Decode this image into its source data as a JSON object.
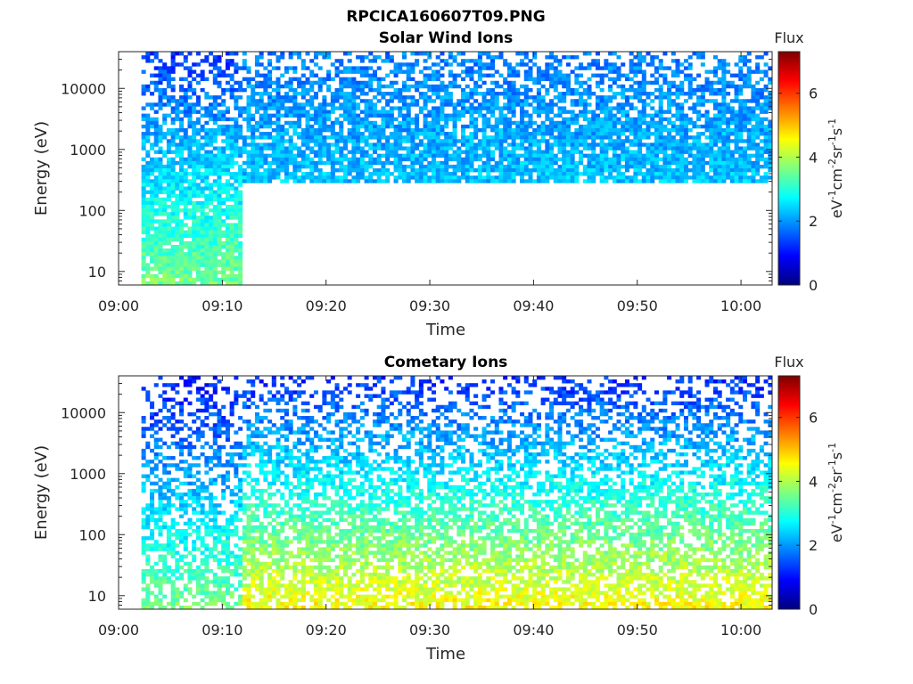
{
  "figure": {
    "title": "RPCICA160607T09.PNG"
  },
  "colorscale": [
    "#00007f",
    "#0000ff",
    "#007fff",
    "#00ffff",
    "#7fff7f",
    "#ffff00",
    "#ff7f00",
    "#ff0000",
    "#7f0000"
  ],
  "chart_data": [
    {
      "type": "heatmap",
      "title": "Solar Wind Ions",
      "xlabel": "Time",
      "ylabel": "Energy (eV)",
      "x_ticks": [
        "09:00",
        "09:10",
        "09:20",
        "09:30",
        "09:40",
        "09:50",
        "10:00"
      ],
      "x_range_minutes": [
        0,
        63
      ],
      "y_scale": "log",
      "y_ticks": [
        "10",
        "100",
        "1000",
        "10000"
      ],
      "y_range": [
        6,
        40000
      ],
      "colorbar": {
        "label": "Flux",
        "units": "eV-1cm-2sr-1s-1",
        "ticks": [
          "0",
          "2",
          "4",
          "6"
        ],
        "range": [
          0,
          7.3
        ]
      },
      "data_start_minute": 2.2,
      "data_end_minute": 63,
      "regions": [
        {
          "from_minute": 2.2,
          "to_minute": 11.8,
          "energy_min": 6,
          "energy_max": 40000,
          "flux_low_energy": 3.6,
          "flux_high_energy": 1.3,
          "density": 0.9
        },
        {
          "from_minute": 11.8,
          "to_minute": 63,
          "energy_min": 300,
          "energy_max": 40000,
          "flux_low_energy": 2.3,
          "flux_high_energy": 1.8,
          "density": 0.85
        }
      ]
    },
    {
      "type": "heatmap",
      "title": "Cometary Ions",
      "xlabel": "Time",
      "ylabel": "Energy (eV)",
      "x_ticks": [
        "09:00",
        "09:10",
        "09:20",
        "09:30",
        "09:40",
        "09:50",
        "10:00"
      ],
      "x_range_minutes": [
        0,
        63
      ],
      "y_scale": "log",
      "y_ticks": [
        "10",
        "100",
        "1000",
        "10000"
      ],
      "y_range": [
        6,
        40000
      ],
      "colorbar": {
        "label": "Flux",
        "units": "eV-1cm-2sr-1s-1",
        "ticks": [
          "0",
          "2",
          "4",
          "6"
        ],
        "range": [
          0,
          7.3
        ]
      },
      "data_start_minute": 2.2,
      "data_end_minute": 63,
      "regions": [
        {
          "from_minute": 2.2,
          "to_minute": 11.8,
          "energy_min": 6,
          "energy_max": 40000,
          "flux_low_energy": 3.6,
          "flux_high_energy": 1.0,
          "density": 0.6
        },
        {
          "from_minute": 11.8,
          "to_minute": 63,
          "energy_min": 6,
          "energy_max": 40000,
          "flux_low_energy": 4.6,
          "flux_high_energy": 1.2,
          "density": 0.7
        }
      ]
    }
  ]
}
